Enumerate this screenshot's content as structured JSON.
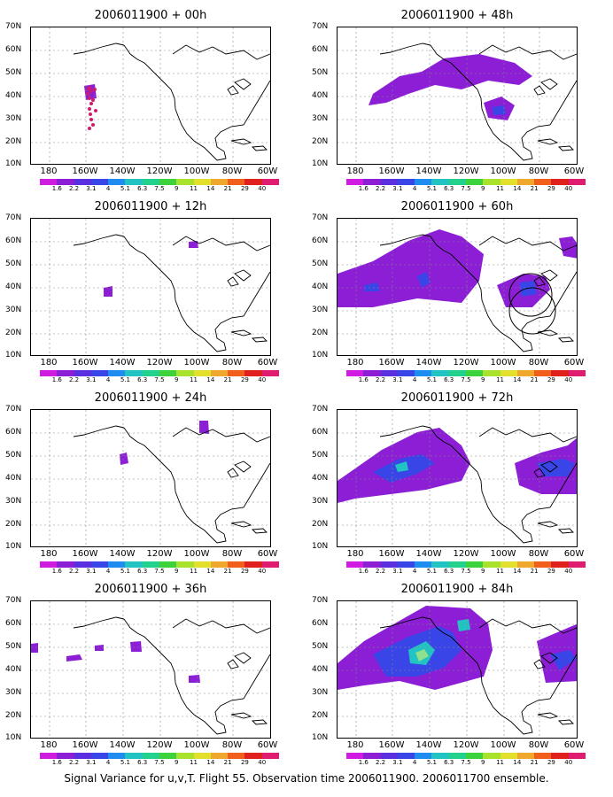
{
  "panels": [
    {
      "title": "2006011900 + 00h",
      "col": 0,
      "row": 0,
      "blobs": []
    },
    {
      "title": "2006011900 + 48h",
      "col": 1,
      "row": 0,
      "blobs": [
        {
          "c": "#8c1fd6",
          "pts": [
            [
              40,
              75
            ],
            [
              70,
              55
            ],
            [
              95,
              50
            ],
            [
              120,
              35
            ],
            [
              160,
              30
            ],
            [
              200,
              40
            ],
            [
              220,
              55
            ],
            [
              205,
              65
            ],
            [
              170,
              60
            ],
            [
              140,
              70
            ],
            [
              110,
              65
            ],
            [
              80,
              75
            ],
            [
              55,
              85
            ],
            [
              35,
              88
            ]
          ]
        },
        {
          "c": "#8c1fd6",
          "pts": [
            [
              165,
              85
            ],
            [
              185,
              78
            ],
            [
              200,
              88
            ],
            [
              192,
              105
            ],
            [
              170,
              102
            ]
          ]
        },
        {
          "c": "#3a45e8",
          "pts": [
            [
              175,
              90
            ],
            [
              188,
              88
            ],
            [
              190,
              98
            ],
            [
              176,
              99
            ]
          ]
        }
      ]
    },
    {
      "title": "2006011900 + 12h",
      "col": 0,
      "row": 1,
      "blobs": [
        {
          "c": "#8c1fd6",
          "pts": [
            [
              82,
              78
            ],
            [
              92,
              76
            ],
            [
              92,
              88
            ],
            [
              82,
              88
            ]
          ]
        },
        {
          "c": "#8c1fd6",
          "pts": [
            [
              178,
              26
            ],
            [
              188,
              25
            ],
            [
              189,
              33
            ],
            [
              178,
              33
            ]
          ]
        }
      ]
    },
    {
      "title": "2006011900 + 60h",
      "col": 1,
      "row": 1,
      "blobs": [
        {
          "c": "#8c1fd6",
          "pts": [
            [
              0,
              62
            ],
            [
              40,
              48
            ],
            [
              80,
              25
            ],
            [
              115,
              12
            ],
            [
              140,
              20
            ],
            [
              165,
              40
            ],
            [
              160,
              70
            ],
            [
              140,
              95
            ],
            [
              90,
              90
            ],
            [
              40,
              100
            ],
            [
              0,
              100
            ]
          ]
        },
        {
          "c": "#3a45e8",
          "pts": [
            [
              90,
              65
            ],
            [
              100,
              60
            ],
            [
              105,
              72
            ],
            [
              95,
              78
            ]
          ]
        },
        {
          "c": "#3a45e8",
          "pts": [
            [
              30,
              75
            ],
            [
              45,
              72
            ],
            [
              48,
              82
            ],
            [
              30,
              82
            ]
          ]
        },
        {
          "c": "#8c1fd6",
          "pts": [
            [
              180,
              75
            ],
            [
              210,
              62
            ],
            [
              235,
              65
            ],
            [
              240,
              80
            ],
            [
              220,
              100
            ],
            [
              190,
              100
            ]
          ]
        },
        {
          "c": "#3a45e8",
          "pts": [
            [
              205,
              72
            ],
            [
              222,
              70
            ],
            [
              225,
              85
            ],
            [
              208,
              88
            ]
          ]
        },
        {
          "c": "#8c1fd6",
          "pts": [
            [
              250,
              22
            ],
            [
              265,
              20
            ],
            [
              272,
              30
            ],
            [
              272,
              45
            ],
            [
              255,
              42
            ]
          ]
        }
      ]
    },
    {
      "title": "2006011900 + 24h",
      "col": 0,
      "row": 2,
      "blobs": [
        {
          "c": "#8c1fd6",
          "pts": [
            [
              100,
              50
            ],
            [
              108,
              48
            ],
            [
              110,
              60
            ],
            [
              101,
              62
            ]
          ]
        },
        {
          "c": "#8c1fd6",
          "pts": [
            [
              190,
              12
            ],
            [
              200,
              12
            ],
            [
              201,
              27
            ],
            [
              190,
              26
            ]
          ]
        }
      ]
    },
    {
      "title": "2006011900 + 72h",
      "col": 1,
      "row": 2,
      "blobs": [
        {
          "c": "#8c1fd6",
          "pts": [
            [
              0,
              80
            ],
            [
              50,
              45
            ],
            [
              90,
              25
            ],
            [
              115,
              20
            ],
            [
              140,
              40
            ],
            [
              150,
              60
            ],
            [
              140,
              80
            ],
            [
              100,
              90
            ],
            [
              60,
              95
            ],
            [
              20,
              100
            ],
            [
              0,
              105
            ]
          ]
        },
        {
          "c": "#3a45e8",
          "pts": [
            [
              40,
              70
            ],
            [
              70,
              55
            ],
            [
              95,
              50
            ],
            [
              110,
              60
            ],
            [
              90,
              72
            ],
            [
              60,
              82
            ]
          ]
        },
        {
          "c": "#21c3c3",
          "pts": [
            [
              65,
              62
            ],
            [
              78,
              58
            ],
            [
              80,
              68
            ],
            [
              68,
              70
            ]
          ]
        },
        {
          "c": "#8c1fd6",
          "pts": [
            [
              200,
              60
            ],
            [
              230,
              48
            ],
            [
              260,
              40
            ],
            [
              272,
              30
            ],
            [
              272,
              95
            ],
            [
              230,
              95
            ],
            [
              205,
              85
            ]
          ]
        },
        {
          "c": "#3a45e8",
          "pts": [
            [
              225,
              60
            ],
            [
              255,
              55
            ],
            [
              268,
              60
            ],
            [
              260,
              75
            ],
            [
              232,
              75
            ]
          ]
        }
      ]
    },
    {
      "title": "2006011900 + 36h",
      "col": 0,
      "row": 3,
      "blobs": [
        {
          "c": "#8c1fd6",
          "pts": [
            [
              0,
              48
            ],
            [
              8,
              47
            ],
            [
              8,
              58
            ],
            [
              0,
              58
            ]
          ]
        },
        {
          "c": "#8c1fd6",
          "pts": [
            [
              40,
              62
            ],
            [
              55,
              60
            ],
            [
              58,
              66
            ],
            [
              40,
              68
            ]
          ]
        },
        {
          "c": "#8c1fd6",
          "pts": [
            [
              72,
              50
            ],
            [
              82,
              49
            ],
            [
              82,
              56
            ],
            [
              72,
              56
            ]
          ]
        },
        {
          "c": "#8c1fd6",
          "pts": [
            [
              112,
              46
            ],
            [
              124,
              45
            ],
            [
              125,
              57
            ],
            [
              113,
              57
            ]
          ]
        },
        {
          "c": "#8c1fd6",
          "pts": [
            [
              178,
              84
            ],
            [
              190,
              83
            ],
            [
              191,
              92
            ],
            [
              178,
              92
            ]
          ]
        }
      ]
    },
    {
      "title": "2006011900 + 84h",
      "col": 1,
      "row": 3,
      "blobs": [
        {
          "c": "#8c1fd6",
          "pts": [
            [
              0,
              70
            ],
            [
              30,
              45
            ],
            [
              70,
              22
            ],
            [
              100,
              5
            ],
            [
              150,
              8
            ],
            [
              170,
              25
            ],
            [
              175,
              55
            ],
            [
              165,
              85
            ],
            [
              110,
              100
            ],
            [
              70,
              90
            ],
            [
              30,
              95
            ],
            [
              0,
              100
            ]
          ]
        },
        {
          "c": "#3a45e8",
          "pts": [
            [
              40,
              60
            ],
            [
              80,
              40
            ],
            [
              115,
              28
            ],
            [
              130,
              35
            ],
            [
              140,
              55
            ],
            [
              120,
              75
            ],
            [
              90,
              85
            ],
            [
              55,
              85
            ]
          ]
        },
        {
          "c": "#21c3c3",
          "pts": [
            [
              80,
              55
            ],
            [
              100,
              45
            ],
            [
              110,
              55
            ],
            [
              100,
              72
            ],
            [
              82,
              70
            ]
          ]
        },
        {
          "c": "#8ee08e",
          "pts": [
            [
              88,
              58
            ],
            [
              98,
              54
            ],
            [
              103,
              62
            ],
            [
              92,
              68
            ]
          ]
        },
        {
          "c": "#21c3c3",
          "pts": [
            [
              135,
              22
            ],
            [
              148,
              20
            ],
            [
              150,
              32
            ],
            [
              137,
              34
            ]
          ]
        },
        {
          "c": "#8c1fd6",
          "pts": [
            [
              225,
              45
            ],
            [
              260,
              30
            ],
            [
              272,
              25
            ],
            [
              272,
              90
            ],
            [
              235,
              92
            ]
          ]
        },
        {
          "c": "#3a45e8",
          "pts": [
            [
              240,
              60
            ],
            [
              262,
              55
            ],
            [
              270,
              65
            ],
            [
              250,
              78
            ]
          ]
        }
      ]
    }
  ],
  "y_labels": [
    "70N",
    "60N",
    "50N",
    "40N",
    "30N",
    "20N",
    "10N"
  ],
  "x_labels": [
    "180",
    "160W",
    "140W",
    "120W",
    "100W",
    "80W",
    "60W"
  ],
  "colorbar": {
    "labels": [
      "1.6",
      "2.2",
      "3.1",
      "4",
      "5.1",
      "6.3",
      "7.5",
      "9",
      "11",
      "14",
      "21",
      "29",
      "40"
    ],
    "colors": [
      "#d01be0",
      "#8c1fd6",
      "#5a2fe0",
      "#3a45e8",
      "#1f8cf0",
      "#21c3c3",
      "#21d18c",
      "#3cd23c",
      "#a8e22c",
      "#e2e02c",
      "#f0a82c",
      "#f0601c",
      "#e0201c",
      "#e01c70"
    ]
  },
  "caption": "Signal Variance for u,v,T. Flight 55. Observation time 2006011900. 2006011700 ensemble."
}
